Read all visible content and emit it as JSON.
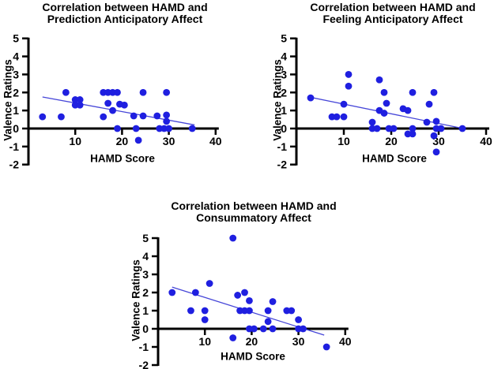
{
  "figure": {
    "background": "#ffffff",
    "description_visible_text_only": true
  },
  "styles": {
    "point_color": "#1f1fe0",
    "trend_color": "#4646d8",
    "axis_color": "#000000",
    "text_color": "#000000"
  },
  "chart_data": [
    {
      "type": "scatter",
      "title_lines": [
        "Correlation between HAMD and",
        "Prediction Anticipatory Affect"
      ],
      "xlabel": "HAMD Score",
      "ylabel": "Valence Ratings",
      "xlim": [
        0,
        40
      ],
      "ylim": [
        -2,
        5
      ],
      "xticks": [
        10,
        20,
        30,
        40
      ],
      "yticks": [
        5,
        4,
        3,
        2,
        1,
        0,
        -1,
        -2
      ],
      "grid": false,
      "legend": "none",
      "points": [
        [
          3,
          0.65
        ],
        [
          7,
          0.65
        ],
        [
          8,
          2
        ],
        [
          10,
          1.6
        ],
        [
          10,
          1.3
        ],
        [
          11,
          1.6
        ],
        [
          11,
          1.3
        ],
        [
          16,
          0.65
        ],
        [
          16,
          2
        ],
        [
          17,
          2
        ],
        [
          17,
          1.4
        ],
        [
          18,
          2
        ],
        [
          18,
          1
        ],
        [
          19,
          2
        ],
        [
          19,
          0
        ],
        [
          19.5,
          1.35
        ],
        [
          20.5,
          1.3
        ],
        [
          22.5,
          0.7
        ],
        [
          23,
          0
        ],
        [
          23.5,
          -0.65
        ],
        [
          24.5,
          2
        ],
        [
          24.5,
          0.7
        ],
        [
          27.5,
          0.7
        ],
        [
          28,
          0
        ],
        [
          29,
          0
        ],
        [
          29.5,
          2
        ],
        [
          29.5,
          0.75
        ],
        [
          29.5,
          0.4
        ],
        [
          30,
          0
        ],
        [
          35,
          0
        ]
      ],
      "trend_line": {
        "x1": 3,
        "y1": 1.75,
        "x2": 35.5,
        "y2": 0.2
      }
    },
    {
      "type": "scatter",
      "title_lines": [
        "Correlation between HAMD and",
        "Feeling Anticipatory Affect"
      ],
      "xlabel": "HAMD Score",
      "ylabel": "Valence Ratings",
      "xlim": [
        0,
        40
      ],
      "ylim": [
        -2,
        5
      ],
      "xticks": [
        10,
        20,
        30,
        40
      ],
      "yticks": [
        5,
        4,
        3,
        2,
        1,
        0,
        -1,
        -2
      ],
      "grid": false,
      "legend": "none",
      "points": [
        [
          3,
          1.7
        ],
        [
          7.5,
          0.65
        ],
        [
          8.5,
          0.65
        ],
        [
          10,
          1.35
        ],
        [
          10,
          0.65
        ],
        [
          11,
          3
        ],
        [
          11,
          2.35
        ],
        [
          16,
          0.35
        ],
        [
          16,
          0
        ],
        [
          17,
          0
        ],
        [
          17.5,
          2.7
        ],
        [
          17.5,
          1
        ],
        [
          18.5,
          2
        ],
        [
          18.5,
          0.85
        ],
        [
          19,
          1.4
        ],
        [
          19.5,
          0
        ],
        [
          20.5,
          0
        ],
        [
          22.5,
          1.1
        ],
        [
          23.5,
          1
        ],
        [
          23.5,
          -0.3
        ],
        [
          24.5,
          2
        ],
        [
          24.5,
          0
        ],
        [
          24.5,
          -0.3
        ],
        [
          27.5,
          0.35
        ],
        [
          28,
          1.35
        ],
        [
          29,
          2
        ],
        [
          29,
          -0.4
        ],
        [
          29.5,
          0.4
        ],
        [
          29.5,
          0
        ],
        [
          29.5,
          -1.3
        ],
        [
          30.5,
          0
        ],
        [
          35,
          0
        ]
      ],
      "trend_line": {
        "x1": 3.2,
        "y1": 1.72,
        "x2": 35.2,
        "y2": 0
      }
    },
    {
      "type": "scatter",
      "title_lines": [
        "Correlation between HAMD and",
        "Consummatory Affect"
      ],
      "xlabel": "HAMD Score",
      "ylabel": "Valence Ratings",
      "xlim": [
        0,
        40
      ],
      "ylim": [
        -2,
        5
      ],
      "xticks": [
        10,
        20,
        30,
        40
      ],
      "yticks": [
        5,
        4,
        3,
        2,
        1,
        0,
        -1,
        -2
      ],
      "grid": false,
      "legend": "none",
      "points": [
        [
          3,
          2
        ],
        [
          7,
          1
        ],
        [
          8,
          2
        ],
        [
          10,
          1
        ],
        [
          10,
          0.5
        ],
        [
          11,
          2.5
        ],
        [
          16,
          5
        ],
        [
          16,
          -0.5
        ],
        [
          17,
          1.85
        ],
        [
          17.5,
          1
        ],
        [
          18.5,
          2
        ],
        [
          18.5,
          1
        ],
        [
          19.5,
          1.55
        ],
        [
          19.5,
          1
        ],
        [
          19.5,
          0
        ],
        [
          20.5,
          0
        ],
        [
          22.5,
          0
        ],
        [
          23.5,
          1
        ],
        [
          23.5,
          0.4
        ],
        [
          24.5,
          1.5
        ],
        [
          24.5,
          0
        ],
        [
          27.5,
          1
        ],
        [
          28.5,
          1
        ],
        [
          30,
          0.5
        ],
        [
          30,
          0
        ],
        [
          31,
          0
        ],
        [
          36,
          -1
        ]
      ],
      "trend_line": {
        "x1": 3,
        "y1": 2.3,
        "x2": 35.5,
        "y2": -0.35
      }
    }
  ]
}
